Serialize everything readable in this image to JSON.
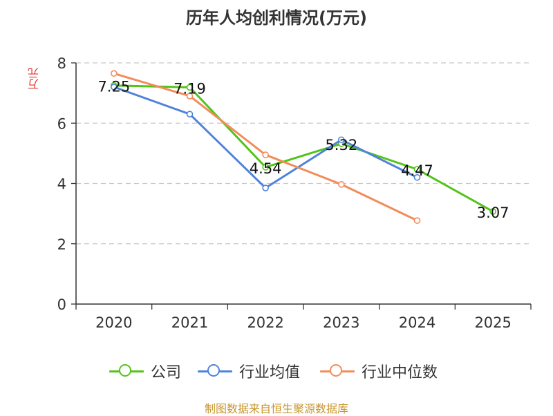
{
  "chart_data": {
    "type": "line",
    "title": "历年人均创利情况(万元)",
    "xlabel": "",
    "ylabel": "万元",
    "categories": [
      "2020",
      "2021",
      "2022",
      "2023",
      "2024",
      "2025"
    ],
    "ylim": [
      0,
      8
    ],
    "yticks": [
      0,
      2,
      4,
      6,
      8
    ],
    "grid": true,
    "legend_position": "bottom",
    "series": [
      {
        "name": "公司",
        "color": "#52c41a",
        "values": [
          7.25,
          7.19,
          4.54,
          5.32,
          4.47,
          3.07
        ],
        "labels": [
          "7.25",
          "7.19",
          "4.54",
          "5.32",
          "4.47",
          "3.07"
        ]
      },
      {
        "name": "行业均值",
        "color": "#4f83db",
        "values": [
          7.2,
          6.3,
          3.85,
          5.45,
          4.2,
          null
        ]
      },
      {
        "name": "行业中位数",
        "color": "#f28c5a",
        "values": [
          7.65,
          6.9,
          4.95,
          3.97,
          2.77,
          null
        ]
      }
    ],
    "source": "制图数据来自恒生聚源数据库"
  }
}
